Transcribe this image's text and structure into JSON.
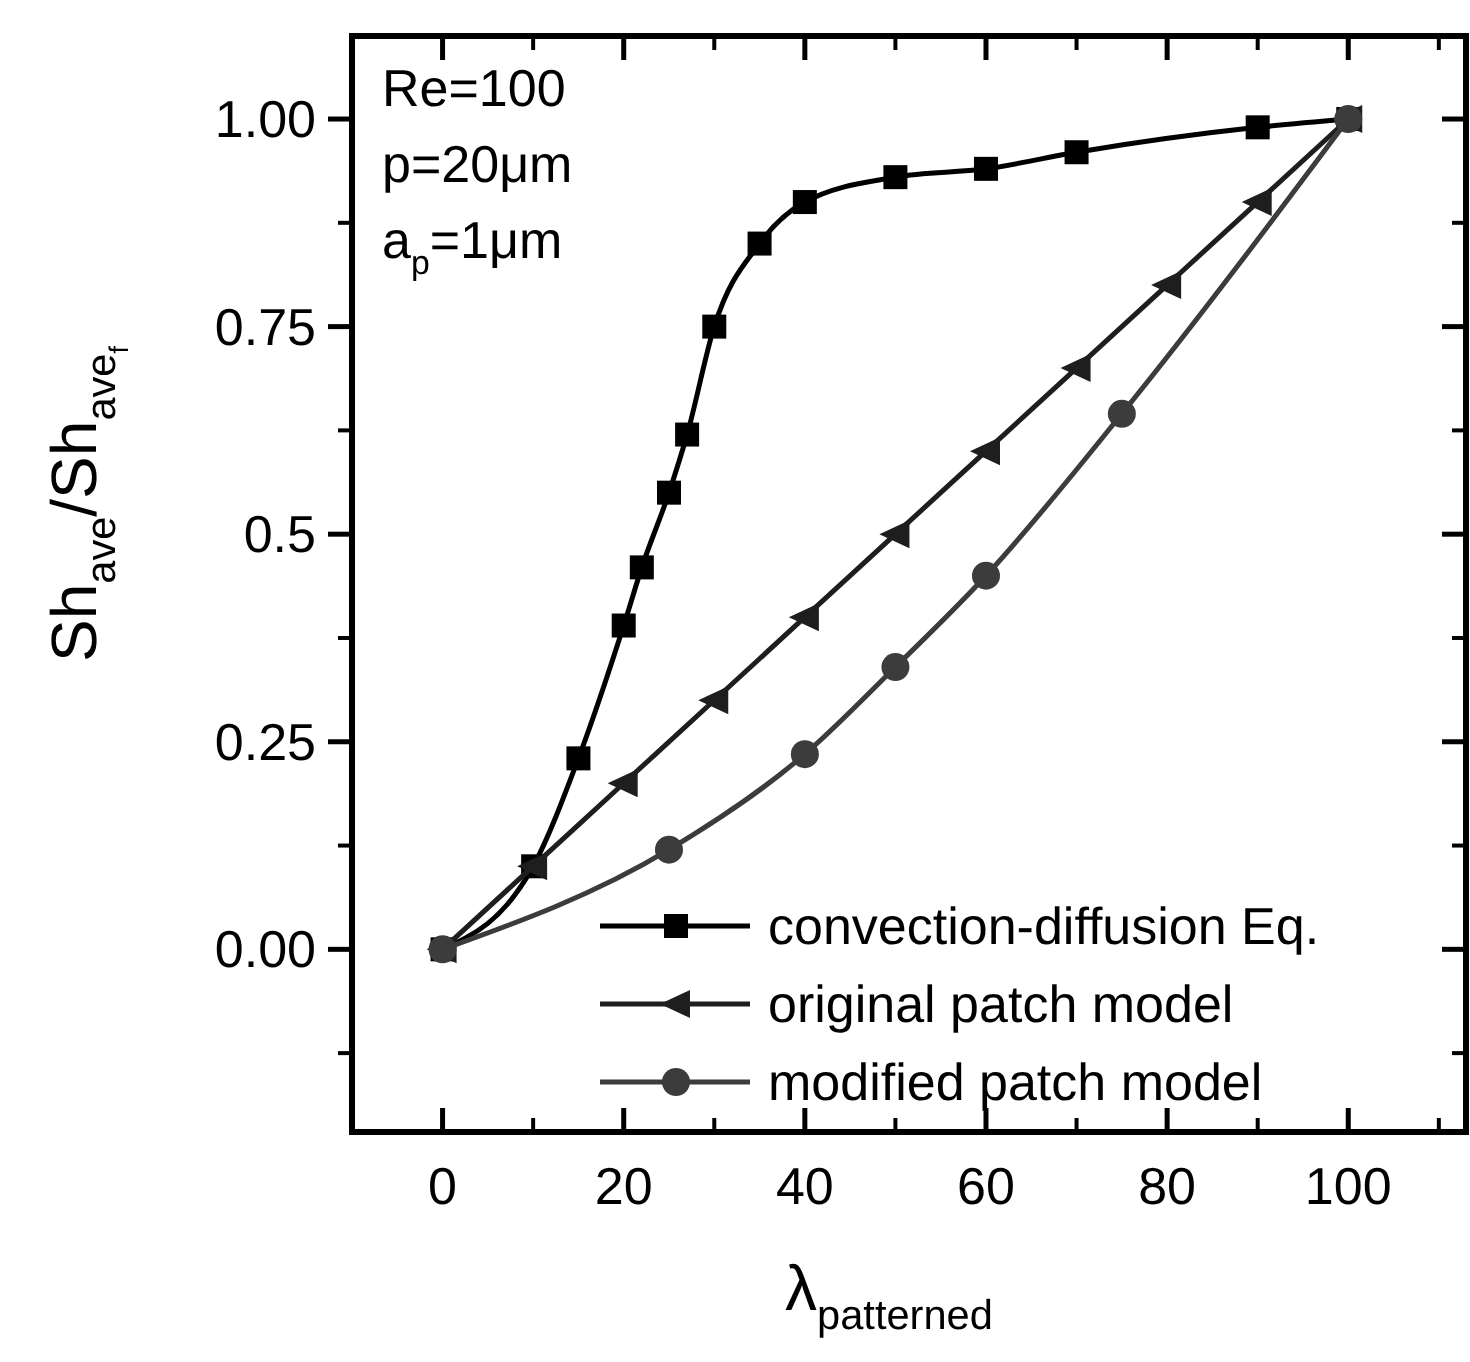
{
  "chart_data": {
    "type": "line",
    "xlabel": "λ$_{patterned}$",
    "ylabel": "Sh$_{ave}$/Sh$_{ave}$$_{f}$",
    "annotations": [
      "Re=100",
      "p=20μm",
      "a$_{p}$=1μm"
    ],
    "xlim": [
      -10,
      113
    ],
    "xticks": [
      0,
      20,
      40,
      60,
      80,
      100
    ],
    "ylim": [
      -0.22,
      1.1
    ],
    "yticks": [
      "0.00",
      0.25,
      0.5,
      0.75,
      "1.00"
    ],
    "legend": "bottom right",
    "line_style": "solid",
    "grid": false,
    "series": [
      {
        "name": "convection-diffusion Eq.",
        "color": "#000000",
        "marker": "square",
        "x": [
          0,
          10,
          15,
          20,
          22,
          25,
          27,
          30,
          35,
          40,
          50,
          60,
          70,
          90,
          100
        ],
        "values": [
          0,
          0.1,
          0.23,
          0.39,
          0.46,
          0.55,
          0.62,
          0.75,
          0.85,
          0.9,
          0.93,
          0.94,
          0.96,
          0.99,
          1.0
        ]
      },
      {
        "name": "original patch model",
        "color": "#1e1e1e",
        "marker": "triangle",
        "x": [
          0,
          10,
          20,
          30,
          40,
          50,
          60,
          70,
          80,
          90,
          100
        ],
        "values": [
          0,
          0.1,
          0.2,
          0.3,
          0.4,
          0.5,
          0.6,
          0.7,
          0.8,
          0.9,
          1.0
        ]
      },
      {
        "name": "modified patch model",
        "color": "#3c3c3c",
        "marker": "circle",
        "x": [
          0,
          25,
          40,
          50,
          60,
          75,
          100
        ],
        "values": [
          0,
          0.12,
          0.235,
          0.34,
          0.45,
          0.645,
          1.0
        ]
      }
    ]
  }
}
